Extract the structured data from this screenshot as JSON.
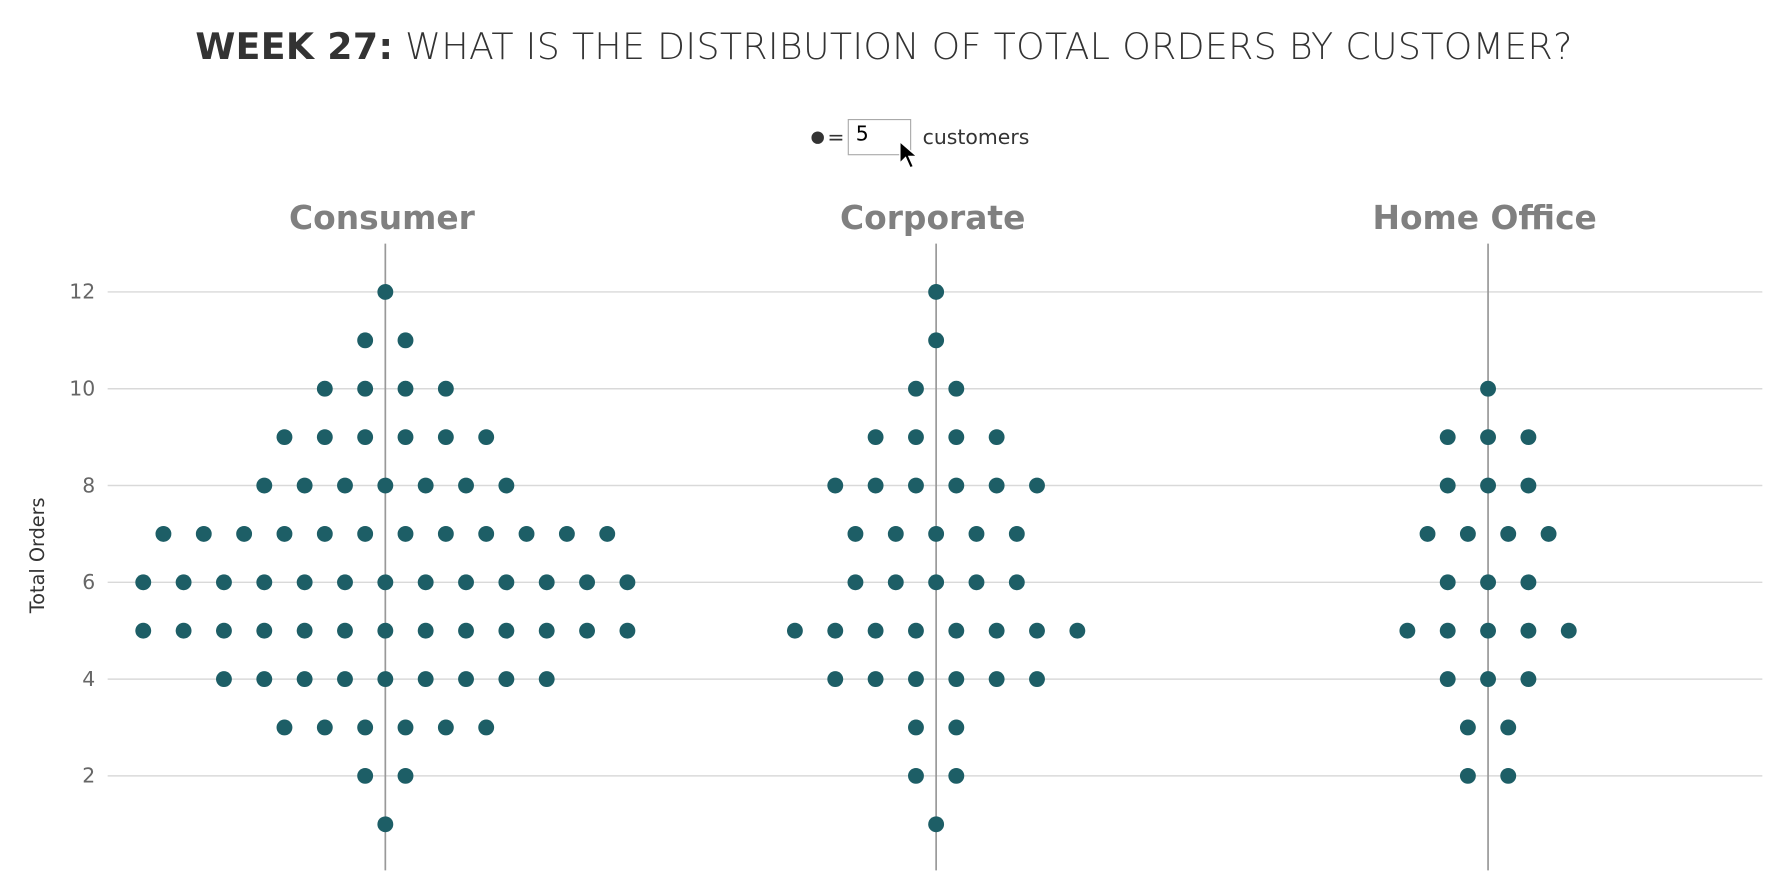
{
  "title": {
    "bold": "WEEK 27:",
    "rest": " WHAT IS THE DISTRIBUTION OF TOTAL ORDERS BY CUSTOMER?"
  },
  "filter": {
    "legend_symbol": "dot-icon",
    "equals": "=",
    "value": "5",
    "unit_label": "customers"
  },
  "colors": {
    "dot": "#1d5e66",
    "grid": "#d9d9d9",
    "axis": "#999999",
    "header": "#808080"
  },
  "chart_data": {
    "type": "scatter",
    "subtype": "dot plot (each dot = 5 customers)",
    "ylabel": "Total Orders",
    "ylim": [
      0,
      13
    ],
    "yticks": [
      "2",
      "4",
      "6",
      "8",
      "10",
      "12"
    ],
    "grid": true,
    "panels": [
      {
        "name": "Consumer",
        "rows": [
          {
            "y": 12,
            "dots": 1
          },
          {
            "y": 11,
            "dots": 2
          },
          {
            "y": 10,
            "dots": 4
          },
          {
            "y": 9,
            "dots": 6
          },
          {
            "y": 8,
            "dots": 7
          },
          {
            "y": 7,
            "dots": 12
          },
          {
            "y": 6,
            "dots": 13
          },
          {
            "y": 5,
            "dots": 13
          },
          {
            "y": 4,
            "dots": 9
          },
          {
            "y": 3,
            "dots": 6
          },
          {
            "y": 2,
            "dots": 2
          },
          {
            "y": 1,
            "dots": 1
          }
        ]
      },
      {
        "name": "Corporate",
        "rows": [
          {
            "y": 12,
            "dots": 1
          },
          {
            "y": 11,
            "dots": 1
          },
          {
            "y": 10,
            "dots": 2
          },
          {
            "y": 9,
            "dots": 4
          },
          {
            "y": 8,
            "dots": 6
          },
          {
            "y": 7,
            "dots": 5
          },
          {
            "y": 6,
            "dots": 5
          },
          {
            "y": 5,
            "dots": 8
          },
          {
            "y": 4,
            "dots": 6
          },
          {
            "y": 3,
            "dots": 2
          },
          {
            "y": 2,
            "dots": 2
          },
          {
            "y": 1,
            "dots": 1
          }
        ]
      },
      {
        "name": "Home Office",
        "rows": [
          {
            "y": 10,
            "dots": 1
          },
          {
            "y": 9,
            "dots": 3
          },
          {
            "y": 8,
            "dots": 3
          },
          {
            "y": 7,
            "dots": 4
          },
          {
            "y": 6,
            "dots": 3
          },
          {
            "y": 5,
            "dots": 5
          },
          {
            "y": 4,
            "dots": 3
          },
          {
            "y": 3,
            "dots": 2
          },
          {
            "y": 2,
            "dots": 2
          }
        ]
      }
    ]
  }
}
